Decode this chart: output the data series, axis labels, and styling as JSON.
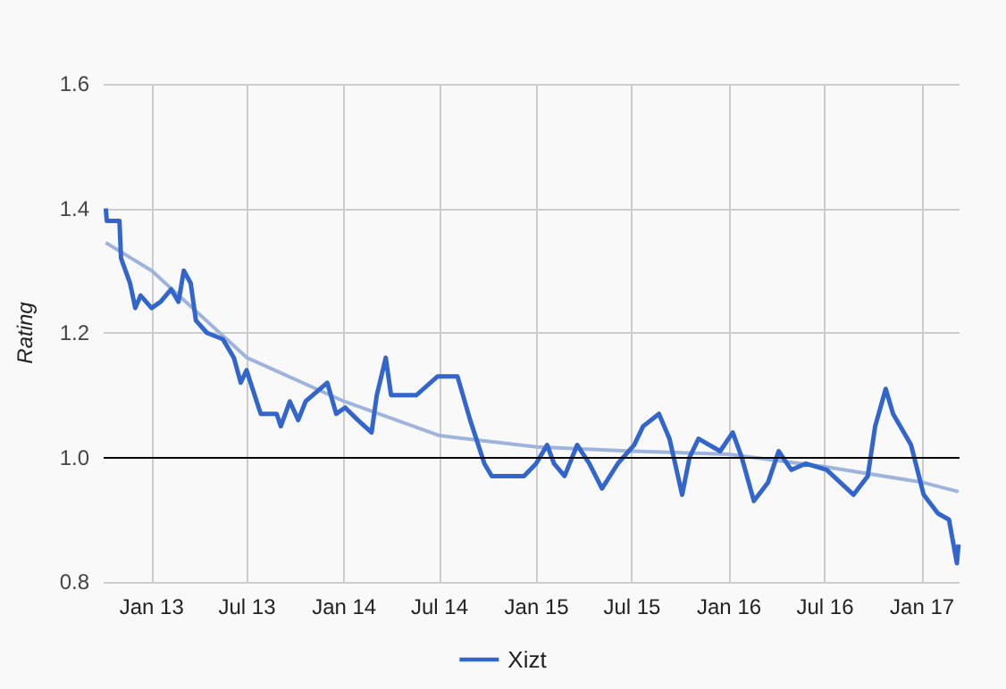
{
  "chart_data": {
    "type": "line",
    "ylabel": "Rating",
    "xlim": [
      "2012-10-02",
      "2017-03-13"
    ],
    "xticks": [
      {
        "value": "2013-01-01",
        "label": "Jan 13"
      },
      {
        "value": "2013-07-01",
        "label": "Jul 13"
      },
      {
        "value": "2014-01-01",
        "label": "Jan 14"
      },
      {
        "value": "2014-07-01",
        "label": "Jul 14"
      },
      {
        "value": "2015-01-01",
        "label": "Jan 15"
      },
      {
        "value": "2015-07-01",
        "label": "Jul 15"
      },
      {
        "value": "2016-01-01",
        "label": "Jan 16"
      },
      {
        "value": "2016-07-01",
        "label": "Jul 16"
      },
      {
        "value": "2017-01-01",
        "label": "Jan 17"
      }
    ],
    "ylim": [
      0.8,
      1.6
    ],
    "yticks": [
      {
        "value": 0.8,
        "label": "0.8"
      },
      {
        "value": 1.0,
        "label": "1.0"
      },
      {
        "value": 1.2,
        "label": "1.2"
      },
      {
        "value": 1.4,
        "label": "1.4"
      },
      {
        "value": 1.6,
        "label": "1.6"
      }
    ],
    "grid": true,
    "legend": "bottom",
    "marker": "none",
    "line_style": "solid",
    "ref_lines": [
      {
        "axis": "y",
        "value": 1.0,
        "color": "#000000"
      }
    ],
    "series": [
      {
        "name": "Xizt",
        "color": "#3366cc",
        "x": [
          "2012-10-06",
          "2012-10-08",
          "2012-11-01",
          "2012-11-04",
          "2012-11-21",
          "2012-12-01",
          "2012-12-11",
          "2013-01-01",
          "2013-01-18",
          "2013-02-07",
          "2013-02-21",
          "2013-03-03",
          "2013-03-16",
          "2013-03-26",
          "2013-04-16",
          "2013-05-16",
          "2013-06-06",
          "2013-06-19",
          "2013-06-30",
          "2013-07-23",
          "2013-07-27",
          "2013-08-26",
          "2013-09-03",
          "2013-09-20",
          "2013-10-06",
          "2013-10-20",
          "2013-11-30",
          "2013-12-17",
          "2014-01-03",
          "2014-01-27",
          "2014-02-22",
          "2014-03-04",
          "2014-03-21",
          "2014-03-31",
          "2014-05-18",
          "2014-06-27",
          "2014-08-04",
          "2014-08-28",
          "2014-09-24",
          "2014-10-08",
          "2014-12-08",
          "2014-12-31",
          "2015-01-21",
          "2015-02-03",
          "2015-02-23",
          "2015-03-19",
          "2015-04-11",
          "2015-05-05",
          "2015-06-04",
          "2015-07-05",
          "2015-07-22",
          "2015-08-21",
          "2015-09-10",
          "2015-10-04",
          "2015-10-18",
          "2015-11-04",
          "2015-12-15",
          "2016-01-08",
          "2016-01-25",
          "2016-02-17",
          "2016-03-15",
          "2016-04-04",
          "2016-04-28",
          "2016-05-25",
          "2016-07-04",
          "2016-08-24",
          "2016-09-20",
          "2016-10-04",
          "2016-10-24",
          "2016-11-07",
          "2016-12-11",
          "2017-01-04",
          "2017-01-31",
          "2017-02-21",
          "2017-03-08",
          "2017-03-11"
        ],
        "values": [
          1.4,
          1.38,
          1.38,
          1.32,
          1.28,
          1.24,
          1.26,
          1.24,
          1.25,
          1.27,
          1.25,
          1.3,
          1.28,
          1.22,
          1.2,
          1.19,
          1.16,
          1.12,
          1.14,
          1.08,
          1.07,
          1.07,
          1.05,
          1.09,
          1.06,
          1.09,
          1.12,
          1.07,
          1.08,
          1.06,
          1.04,
          1.1,
          1.16,
          1.1,
          1.1,
          1.13,
          1.13,
          1.06,
          0.99,
          0.97,
          0.97,
          0.99,
          1.02,
          0.99,
          0.97,
          1.02,
          0.99,
          0.95,
          0.99,
          1.02,
          1.05,
          1.07,
          1.03,
          0.94,
          1.0,
          1.03,
          1.01,
          1.04,
          1.0,
          0.93,
          0.96,
          1.01,
          0.98,
          0.99,
          0.98,
          0.94,
          0.97,
          1.05,
          1.11,
          1.07,
          1.02,
          0.94,
          0.91,
          0.9,
          0.83,
          0.86
        ]
      },
      {
        "color": "#9fb4dc",
        "x": [
          "2012-10-06",
          "2013-01-01",
          "2013-07-01",
          "2014-01-01",
          "2014-07-01",
          "2015-01-01",
          "2015-07-01",
          "2016-01-01",
          "2016-07-01",
          "2017-01-01",
          "2017-03-11"
        ],
        "values": [
          1.345,
          1.3,
          1.16,
          1.09,
          1.035,
          1.017,
          1.01,
          1.005,
          0.985,
          0.96,
          0.945
        ]
      }
    ]
  }
}
